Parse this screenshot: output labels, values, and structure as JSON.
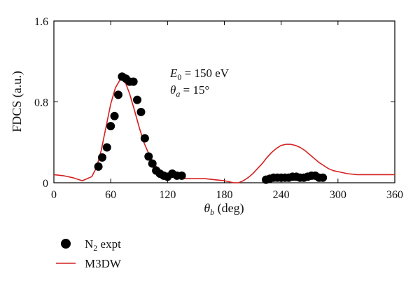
{
  "colors": {
    "theory": "#d42020",
    "expt": "#000000"
  },
  "chart_data": {
    "type": "scatter",
    "xlabel_sym": "θ",
    "xlabel_sub": "b",
    "xlabel_unit": " (deg)",
    "ylabel": "FDCS (a.u.)",
    "xlim": [
      0,
      360
    ],
    "ylim": [
      0,
      1.6
    ],
    "xticks": [
      0,
      60,
      120,
      180,
      240,
      300,
      360
    ],
    "yticks": [
      0,
      0.8,
      1.6
    ],
    "xtick_labels": [
      "0",
      "60",
      "120",
      "180",
      "240",
      "300",
      "360"
    ],
    "ytick_labels": [
      "0",
      "0.8",
      "1.6"
    ],
    "grid": false,
    "legend_position": "bottom-left",
    "annotation": {
      "e_sym": "E",
      "e_sub": "0",
      "e_val": " = 150 eV",
      "t_sym": "θ",
      "t_sub": "a",
      "t_val": " = 15°"
    },
    "series": [
      {
        "name_main": "N",
        "name_sub": "2",
        "name_tail": " expt",
        "kind": "scatter",
        "x": [
          47,
          51,
          56,
          60,
          64,
          68,
          72,
          76,
          80,
          84,
          88,
          92,
          96,
          100,
          104,
          108,
          112,
          116,
          120,
          125,
          130,
          135,
          224,
          228,
          232,
          236,
          240,
          244,
          248,
          252,
          256,
          260,
          264,
          268,
          272,
          276,
          280,
          284
        ],
        "y": [
          0.16,
          0.25,
          0.35,
          0.56,
          0.66,
          0.87,
          1.05,
          1.03,
          1.0,
          1.0,
          0.82,
          0.7,
          0.44,
          0.26,
          0.19,
          0.12,
          0.09,
          0.07,
          0.06,
          0.09,
          0.07,
          0.07,
          0.03,
          0.04,
          0.05,
          0.05,
          0.05,
          0.05,
          0.05,
          0.06,
          0.06,
          0.05,
          0.05,
          0.06,
          0.07,
          0.07,
          0.05,
          0.05
        ]
      },
      {
        "name": "M3DW",
        "kind": "line",
        "x": [
          0,
          10,
          20,
          30,
          40,
          45,
          50,
          55,
          60,
          65,
          70,
          73,
          76,
          80,
          85,
          90,
          95,
          100,
          105,
          110,
          115,
          120,
          130,
          140,
          150,
          160,
          170,
          180,
          190,
          195,
          200,
          205,
          210,
          215,
          220,
          225,
          230,
          235,
          240,
          245,
          250,
          255,
          260,
          265,
          270,
          275,
          280,
          285,
          290,
          295,
          300,
          310,
          320,
          330,
          340,
          350,
          360
        ],
        "y": [
          0.08,
          0.07,
          0.05,
          0.02,
          0.06,
          0.15,
          0.32,
          0.55,
          0.78,
          0.94,
          1.02,
          1.02,
          0.98,
          0.88,
          0.72,
          0.55,
          0.4,
          0.29,
          0.2,
          0.14,
          0.1,
          0.07,
          0.05,
          0.04,
          0.04,
          0.04,
          0.03,
          0.02,
          0.0,
          0.0,
          0.02,
          0.05,
          0.09,
          0.14,
          0.19,
          0.25,
          0.3,
          0.34,
          0.37,
          0.38,
          0.38,
          0.37,
          0.35,
          0.32,
          0.28,
          0.24,
          0.2,
          0.17,
          0.14,
          0.12,
          0.11,
          0.09,
          0.08,
          0.08,
          0.08,
          0.08,
          0.08
        ]
      }
    ]
  }
}
